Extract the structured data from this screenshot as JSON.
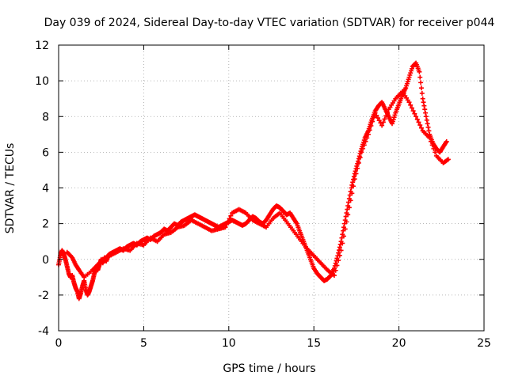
{
  "chart_data": {
    "type": "scatter",
    "title": "Day 039 of 2024, Sidereal Day-to-day VTEC variation (SDTVAR) for receiver p044",
    "xlabel": "GPS time / hours",
    "ylabel": "SDTVAR / TECUs",
    "xlim": [
      0,
      25
    ],
    "ylim": [
      -4,
      12
    ],
    "xticks": [
      "0",
      "5",
      "10",
      "15",
      "20",
      "25"
    ],
    "yticks": [
      "-4",
      "-2",
      "0",
      "2",
      "4",
      "6",
      "8",
      "10",
      "12"
    ],
    "grid": true,
    "marker": "+",
    "series_color": "#ff0000",
    "series": [
      {
        "x": [
          0.0,
          0.1,
          0.2,
          0.3,
          0.4,
          0.5,
          0.6,
          0.7,
          0.8,
          0.9,
          1.0,
          1.1,
          1.2,
          1.3,
          1.4,
          1.5,
          1.6,
          1.7,
          1.8,
          1.9,
          2.0,
          2.1,
          2.2,
          2.3,
          2.4,
          2.5,
          2.6,
          2.7,
          2.8,
          2.9,
          3.0,
          3.2,
          3.4,
          3.6,
          3.8,
          4.0,
          4.2,
          4.4,
          4.6,
          4.8,
          5.0,
          5.2,
          5.4,
          5.6,
          5.8,
          6.0,
          6.2,
          6.4,
          6.6,
          6.8,
          7.0,
          7.2,
          7.4,
          7.6,
          7.8,
          8.0,
          8.2,
          8.4,
          8.6,
          8.8,
          9.0,
          9.2,
          9.4,
          9.6,
          9.8,
          10.0,
          10.2,
          10.4,
          10.6,
          10.8,
          11.0,
          11.2,
          11.4,
          11.6,
          11.8,
          12.0,
          12.2,
          12.4,
          12.6,
          12.8,
          13.0,
          13.2,
          13.4,
          13.6,
          13.8,
          14.0,
          14.2,
          14.4,
          14.6,
          14.8,
          15.0,
          15.2,
          15.4,
          15.6,
          15.8,
          16.0,
          16.2,
          16.4,
          16.6,
          16.8,
          17.0,
          17.2,
          17.4,
          17.6,
          17.8,
          18.0,
          18.2,
          18.4,
          18.6,
          18.8,
          19.0,
          19.2,
          19.4,
          19.6,
          19.8,
          20.0,
          20.2,
          20.4,
          20.6,
          20.8,
          21.0,
          21.2,
          21.4,
          21.6,
          21.8,
          22.0,
          22.2,
          22.4,
          22.6,
          22.8
        ],
        "y": [
          -0.3,
          0.2,
          0.5,
          0.3,
          0.0,
          -0.4,
          -0.8,
          -1.0,
          -0.9,
          -1.3,
          -1.6,
          -1.8,
          -2.2,
          -1.9,
          -1.5,
          -1.2,
          -1.7,
          -2.0,
          -1.8,
          -1.5,
          -1.2,
          -0.8,
          -0.5,
          -0.6,
          -0.3,
          0.0,
          -0.2,
          0.1,
          -0.1,
          0.2,
          0.3,
          0.4,
          0.5,
          0.6,
          0.5,
          0.7,
          0.8,
          0.9,
          0.8,
          1.0,
          1.1,
          1.2,
          1.1,
          1.3,
          1.4,
          1.5,
          1.7,
          1.6,
          1.8,
          2.0,
          1.9,
          2.1,
          2.2,
          2.3,
          2.4,
          2.5,
          2.4,
          2.3,
          2.2,
          2.1,
          2.0,
          1.9,
          1.8,
          1.9,
          2.0,
          2.1,
          2.2,
          2.1,
          2.0,
          1.9,
          2.0,
          2.2,
          2.4,
          2.3,
          2.1,
          2.0,
          2.2,
          2.5,
          2.8,
          3.0,
          2.9,
          2.7,
          2.5,
          2.6,
          2.3,
          2.0,
          1.5,
          1.0,
          0.5,
          0.0,
          -0.5,
          -0.8,
          -1.0,
          -1.2,
          -1.1,
          -0.9,
          -0.5,
          0.2,
          1.0,
          2.0,
          3.0,
          4.0,
          4.8,
          5.5,
          6.2,
          6.8,
          7.2,
          7.8,
          8.3,
          8.6,
          8.8,
          8.4,
          8.0,
          7.6,
          8.2,
          8.7,
          9.2,
          9.6,
          10.2,
          10.8,
          11.0,
          10.5,
          9.0,
          8.0,
          7.0,
          6.5,
          6.2,
          6.0,
          6.3,
          6.6
        ],
        "x2": [
          0.5,
          0.8,
          1.0,
          1.2,
          1.5,
          2.0,
          2.3,
          2.6,
          3.0,
          3.4,
          3.8,
          4.2,
          4.6,
          5.0,
          5.4,
          5.8,
          6.2,
          6.6,
          7.0,
          7.4,
          7.8,
          8.2,
          8.6,
          9.0,
          9.4,
          9.8,
          10.2,
          10.6,
          11.0,
          11.4,
          11.8,
          12.2,
          12.6,
          13.0,
          13.4,
          13.8,
          14.2,
          14.6,
          15.0,
          15.4,
          15.8,
          16.2,
          16.6,
          17.0,
          17.4,
          17.8,
          18.2,
          18.6,
          19.0,
          19.4,
          19.8,
          20.2,
          20.6,
          21.0,
          21.4,
          21.8,
          22.2,
          22.6,
          22.9
        ],
        "y2": [
          0.4,
          0.1,
          -0.3,
          -0.6,
          -1.0,
          -0.6,
          -0.3,
          0.0,
          0.2,
          0.4,
          0.6,
          0.5,
          0.9,
          0.8,
          1.2,
          1.0,
          1.4,
          1.5,
          1.8,
          1.9,
          2.2,
          2.0,
          1.8,
          1.6,
          1.7,
          1.8,
          2.6,
          2.8,
          2.6,
          2.2,
          2.0,
          1.8,
          2.3,
          2.6,
          2.1,
          1.6,
          1.1,
          0.6,
          0.2,
          -0.2,
          -0.6,
          -0.9,
          0.5,
          2.5,
          4.5,
          6.0,
          7.0,
          8.2,
          7.5,
          8.4,
          9.0,
          9.4,
          8.8,
          8.0,
          7.2,
          6.8,
          5.8,
          5.4,
          5.6
        ]
      }
    ]
  }
}
